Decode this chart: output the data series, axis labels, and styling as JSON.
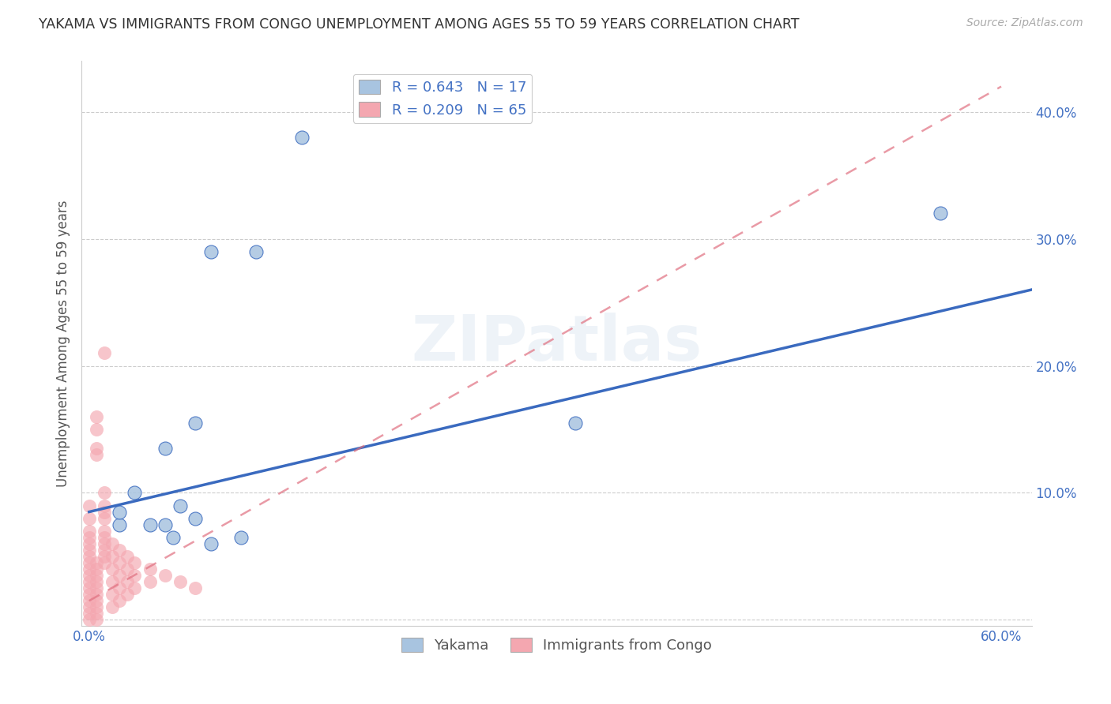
{
  "title": "YAKAMA VS IMMIGRANTS FROM CONGO UNEMPLOYMENT AMONG AGES 55 TO 59 YEARS CORRELATION CHART",
  "source": "Source: ZipAtlas.com",
  "xlabel": "",
  "ylabel": "Unemployment Among Ages 55 to 59 years",
  "legend_bottom": [
    "Yakama",
    "Immigrants from Congo"
  ],
  "yakama_R": 0.643,
  "yakama_N": 17,
  "congo_R": 0.209,
  "congo_N": 65,
  "xlim": [
    -0.005,
    0.62
  ],
  "ylim": [
    -0.005,
    0.44
  ],
  "xticks": [
    0.0,
    0.1,
    0.2,
    0.3,
    0.4,
    0.5,
    0.6
  ],
  "xtick_labels": [
    "0.0%",
    "",
    "",
    "",
    "",
    "",
    "60.0%"
  ],
  "yticks": [
    0.0,
    0.1,
    0.2,
    0.3,
    0.4
  ],
  "ytick_labels": [
    "",
    "10.0%",
    "20.0%",
    "30.0%",
    "40.0%"
  ],
  "grid_color": "#cccccc",
  "background_color": "#ffffff",
  "title_color": "#333333",
  "axis_color": "#4472c4",
  "watermark": "ZIPatlas",
  "yakama_color": "#a8c4e0",
  "congo_color": "#f4a7b0",
  "yakama_line_color": "#3a6abf",
  "congo_line_color": "#e07080",
  "yakama_line_x0": 0.0,
  "yakama_line_y0": 0.085,
  "yakama_line_x1": 0.62,
  "yakama_line_y1": 0.26,
  "congo_line_x0": 0.0,
  "congo_line_y0": 0.015,
  "congo_line_x1": 0.6,
  "congo_line_y1": 0.42,
  "yakama_scatter": [
    [
      0.14,
      0.38
    ],
    [
      0.08,
      0.29
    ],
    [
      0.11,
      0.29
    ],
    [
      0.32,
      0.155
    ],
    [
      0.56,
      0.32
    ],
    [
      0.02,
      0.075
    ],
    [
      0.02,
      0.085
    ],
    [
      0.03,
      0.1
    ],
    [
      0.04,
      0.075
    ],
    [
      0.05,
      0.135
    ],
    [
      0.05,
      0.075
    ],
    [
      0.055,
      0.065
    ],
    [
      0.06,
      0.09
    ],
    [
      0.07,
      0.08
    ],
    [
      0.08,
      0.06
    ],
    [
      0.1,
      0.065
    ],
    [
      0.07,
      0.155
    ]
  ],
  "congo_scatter": [
    [
      0.01,
      0.21
    ],
    [
      0.005,
      0.16
    ],
    [
      0.005,
      0.15
    ],
    [
      0.005,
      0.135
    ],
    [
      0.005,
      0.13
    ],
    [
      0.01,
      0.1
    ],
    [
      0.01,
      0.09
    ],
    [
      0.01,
      0.085
    ],
    [
      0.01,
      0.08
    ],
    [
      0.01,
      0.07
    ],
    [
      0.01,
      0.065
    ],
    [
      0.01,
      0.06
    ],
    [
      0.01,
      0.055
    ],
    [
      0.01,
      0.05
    ],
    [
      0.01,
      0.045
    ],
    [
      0.005,
      0.045
    ],
    [
      0.005,
      0.04
    ],
    [
      0.005,
      0.035
    ],
    [
      0.005,
      0.03
    ],
    [
      0.005,
      0.025
    ],
    [
      0.005,
      0.02
    ],
    [
      0.005,
      0.015
    ],
    [
      0.005,
      0.01
    ],
    [
      0.005,
      0.005
    ],
    [
      0.005,
      0.0
    ],
    [
      0.0,
      0.09
    ],
    [
      0.0,
      0.08
    ],
    [
      0.0,
      0.07
    ],
    [
      0.0,
      0.065
    ],
    [
      0.0,
      0.06
    ],
    [
      0.0,
      0.055
    ],
    [
      0.0,
      0.05
    ],
    [
      0.0,
      0.045
    ],
    [
      0.0,
      0.04
    ],
    [
      0.0,
      0.035
    ],
    [
      0.0,
      0.03
    ],
    [
      0.0,
      0.025
    ],
    [
      0.0,
      0.02
    ],
    [
      0.0,
      0.015
    ],
    [
      0.0,
      0.01
    ],
    [
      0.0,
      0.005
    ],
    [
      0.0,
      0.0
    ],
    [
      0.015,
      0.06
    ],
    [
      0.015,
      0.05
    ],
    [
      0.015,
      0.04
    ],
    [
      0.015,
      0.03
    ],
    [
      0.015,
      0.02
    ],
    [
      0.015,
      0.01
    ],
    [
      0.02,
      0.055
    ],
    [
      0.02,
      0.045
    ],
    [
      0.02,
      0.035
    ],
    [
      0.02,
      0.025
    ],
    [
      0.02,
      0.015
    ],
    [
      0.025,
      0.05
    ],
    [
      0.025,
      0.04
    ],
    [
      0.025,
      0.03
    ],
    [
      0.025,
      0.02
    ],
    [
      0.03,
      0.045
    ],
    [
      0.03,
      0.035
    ],
    [
      0.03,
      0.025
    ],
    [
      0.04,
      0.04
    ],
    [
      0.04,
      0.03
    ],
    [
      0.05,
      0.035
    ],
    [
      0.06,
      0.03
    ],
    [
      0.07,
      0.025
    ]
  ]
}
